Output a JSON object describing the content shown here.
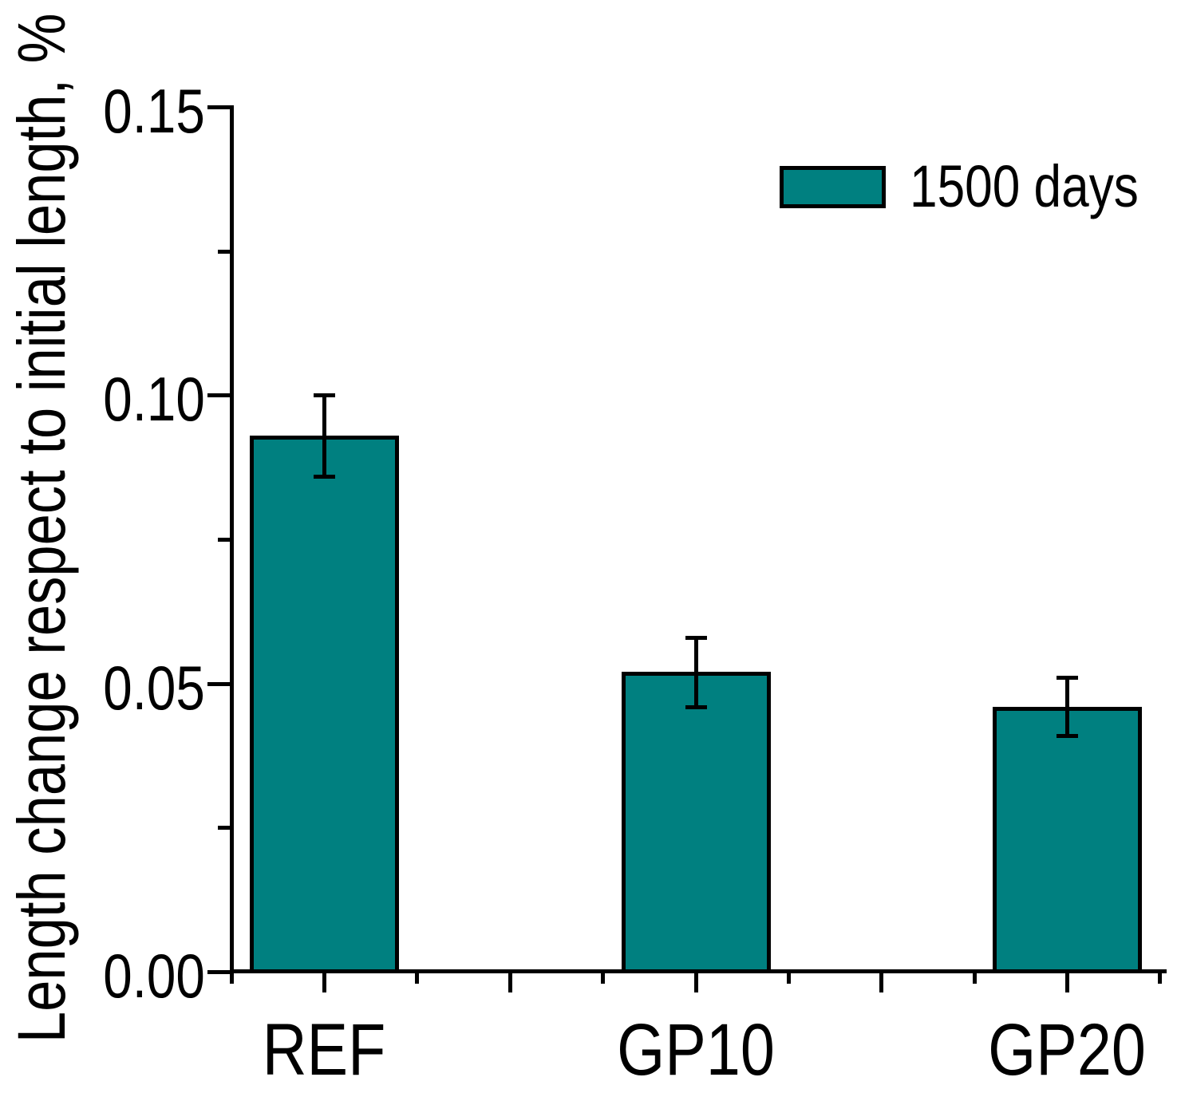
{
  "chart_data": {
    "type": "bar",
    "title": "",
    "xlabel": "",
    "ylabel": "Length change respect to initial length, %",
    "categories": [
      "REF",
      "GP10",
      "GP20"
    ],
    "series": [
      {
        "name": "1500 days",
        "values": [
          0.093,
          0.052,
          0.046
        ],
        "errors": [
          0.007,
          0.006,
          0.005
        ],
        "color": "#008080",
        "edge_color": "#000000"
      }
    ],
    "ylim": [
      0,
      0.15
    ],
    "yticks": {
      "major": [
        0.0,
        0.05,
        0.1,
        0.15
      ],
      "labels": [
        "0.00",
        "0.05",
        "0.10",
        "0.15"
      ],
      "minor": [
        0.025,
        0.075,
        0.125
      ]
    },
    "grid": false,
    "error_bar_color": "#000000",
    "legend": {
      "label": "1500 days",
      "position": "top-right",
      "swatch_color": "#008080"
    }
  }
}
